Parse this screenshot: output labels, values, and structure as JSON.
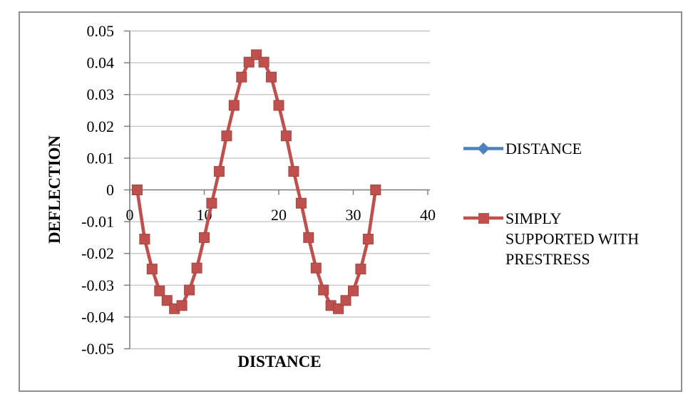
{
  "chart": {
    "y_axis": {
      "title": "DEFLECTION",
      "tick_labels": [
        "0.05",
        "0.04",
        "0.03",
        "0.02",
        "0.01",
        "0",
        "-0.01",
        "-0.02",
        "-0.03",
        "-0.04",
        "-0.05"
      ],
      "min": -0.05,
      "max": 0.05,
      "step": 0.01
    },
    "x_axis": {
      "title": "DISTANCE",
      "tick_labels": [
        "0",
        "10",
        "20",
        "30",
        "40"
      ],
      "tick_values": [
        0,
        10,
        20,
        30,
        40
      ],
      "min": 0,
      "max": 40,
      "step": 10
    },
    "legend": {
      "position": "right",
      "items": [
        {
          "label": "DISTANCE",
          "lines": [
            "DISTANCE"
          ],
          "marker": "diamond",
          "color": "#4f81bd"
        },
        {
          "label": "SIMPLY SUPPORTED WITH PRESTRESS",
          "lines": [
            "SIMPLY",
            "SUPPORTED WITH",
            "PRESTRESS"
          ],
          "marker": "square",
          "color": "#c0504d"
        }
      ]
    },
    "colors": {
      "series_red": "#c0504d",
      "series_red_edge": "#a04542",
      "series_blue": "#4f81bd",
      "gridline": "#c6c6c6",
      "axis": "#808080",
      "text": "#000000",
      "chart_border": "#8f8f8f",
      "background": "#ffffff"
    }
  },
  "chart_data": {
    "type": "line",
    "title": "",
    "xlabel": "DISTANCE",
    "ylabel": "DEFLECTION",
    "xlim": [
      0,
      40
    ],
    "ylim": [
      -0.05,
      0.05
    ],
    "grid": true,
    "legend_position": "right",
    "series": [
      {
        "name": "DISTANCE",
        "color": "#4f81bd",
        "marker": "diamond",
        "x": [],
        "y": []
      },
      {
        "name": "SIMPLY SUPPORTED WITH PRESTRESS",
        "color": "#c0504d",
        "marker": "square",
        "x": [
          1,
          2,
          3,
          4,
          5,
          6,
          7,
          8,
          9,
          10,
          11,
          12,
          13,
          14,
          15,
          16,
          17,
          18,
          19,
          20,
          21,
          22,
          23,
          24,
          25,
          26,
          27,
          28,
          29,
          30,
          31,
          32,
          33
        ],
        "y": [
          0.0,
          -0.0155,
          -0.0249,
          -0.0318,
          -0.0348,
          -0.0374,
          -0.0364,
          -0.0315,
          -0.0246,
          -0.015,
          -0.0042,
          0.0058,
          0.017,
          0.0266,
          0.0355,
          0.0402,
          0.0425,
          0.0402,
          0.0355,
          0.0266,
          0.017,
          0.0058,
          -0.0042,
          -0.015,
          -0.0246,
          -0.0315,
          -0.0364,
          -0.0374,
          -0.0348,
          -0.0318,
          -0.0249,
          -0.0155,
          0.0
        ]
      }
    ]
  }
}
